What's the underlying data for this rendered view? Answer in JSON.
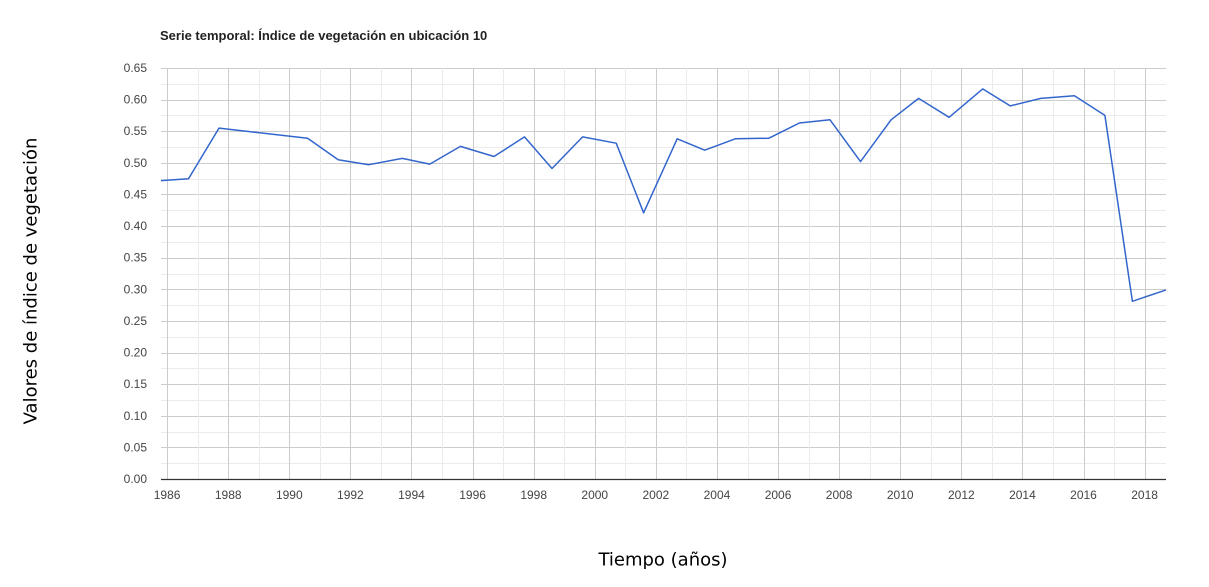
{
  "chart_data": {
    "type": "line",
    "title": "Serie temporal: Índice de vegetación en ubicación 10",
    "xlabel": "Tiempo (años)",
    "ylabel": "Valores de índice de vegetación",
    "xlim": [
      1985.8,
      2018.7
    ],
    "ylim": [
      0,
      0.65
    ],
    "x_ticks": [
      "1986",
      "1988",
      "1990",
      "1992",
      "1994",
      "1996",
      "1998",
      "2000",
      "2002",
      "2004",
      "2006",
      "2008",
      "2010",
      "2012",
      "2014",
      "2016",
      "2018"
    ],
    "y_ticks": [
      "0.00",
      "0.05",
      "0.10",
      "0.15",
      "0.20",
      "0.25",
      "0.30",
      "0.35",
      "0.40",
      "0.45",
      "0.50",
      "0.55",
      "0.60",
      "0.65"
    ],
    "grid": true,
    "legend": "none",
    "series": [
      {
        "color": "#3366cc",
        "x": [
          1985.8,
          1986.7,
          1987.7,
          1990.6,
          1991.6,
          1992.6,
          1993.7,
          1994.6,
          1995.6,
          1996.7,
          1997.7,
          1998.6,
          1999.6,
          2000.7,
          2001.6,
          2002.7,
          2003.6,
          2004.6,
          2005.7,
          2006.7,
          2007.7,
          2008.7,
          2009.7,
          2010.6,
          2011.6,
          2012.7,
          2013.6,
          2014.6,
          2015.7,
          2016.7,
          2017.6,
          2018.7
        ],
        "values": [
          0.472,
          0.475,
          0.555,
          0.539,
          0.505,
          0.497,
          0.507,
          0.498,
          0.526,
          0.51,
          0.541,
          0.491,
          0.541,
          0.531,
          0.421,
          0.538,
          0.52,
          0.538,
          0.539,
          0.563,
          0.568,
          0.502,
          0.568,
          0.602,
          0.572,
          0.617,
          0.59,
          0.602,
          0.606,
          0.575,
          0.281,
          0.299
        ]
      }
    ]
  }
}
